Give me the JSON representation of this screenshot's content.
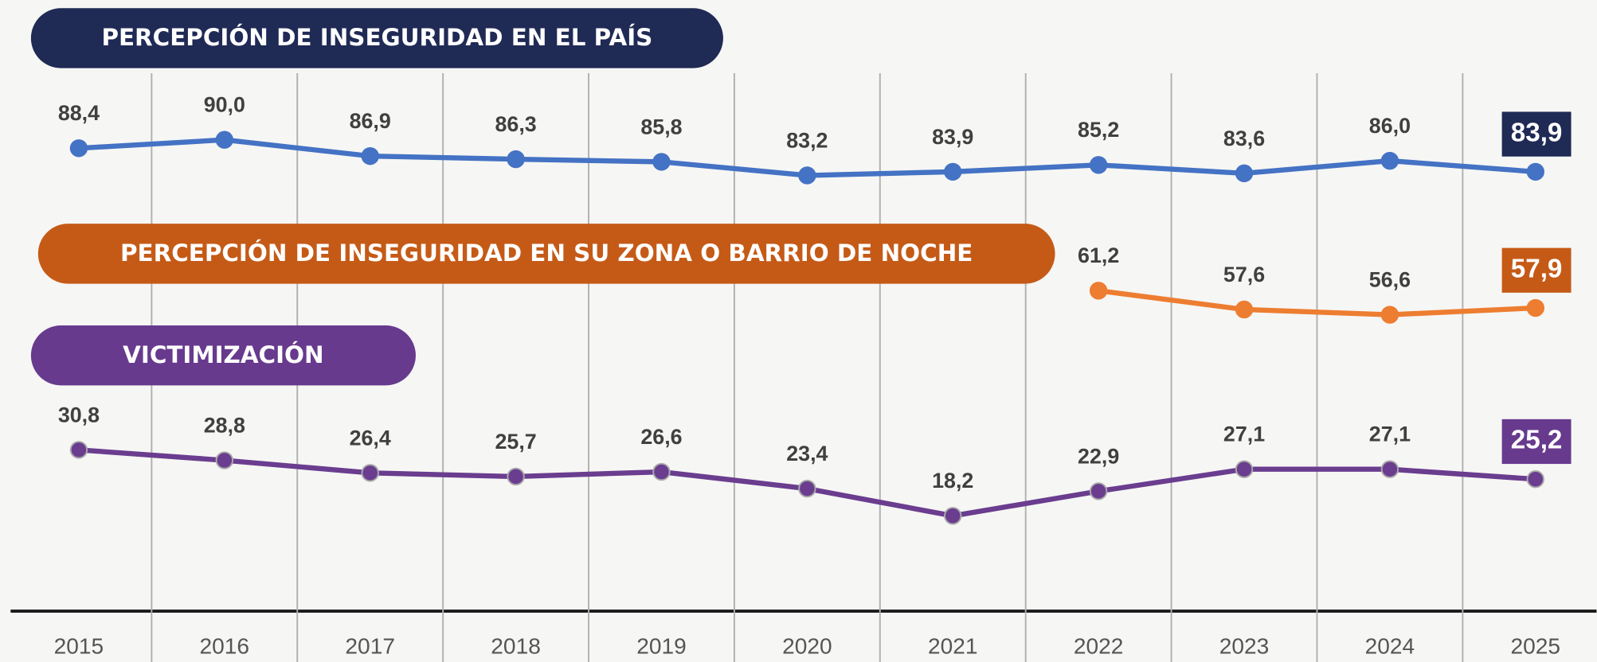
{
  "chart_data": {
    "type": "line",
    "categories": [
      "2015",
      "2016",
      "2017",
      "2018",
      "2019",
      "2020",
      "2021",
      "2022",
      "2023",
      "2024",
      "2025"
    ],
    "ylim": [
      0,
      100
    ],
    "series": [
      {
        "name": "PERCEPCIÓN DE INSEGURIDAD EN EL PAÍS",
        "color": "#4472c4",
        "banner_color": "#1f2a55",
        "values": [
          88.4,
          90.0,
          86.9,
          86.3,
          85.8,
          83.2,
          83.9,
          85.2,
          83.6,
          86.0,
          83.9
        ],
        "value_labels": [
          "88,4",
          "90,0",
          "86,9",
          "86,3",
          "85,8",
          "83,2",
          "83,9",
          "85,2",
          "83,6",
          "86,0",
          "83,9"
        ]
      },
      {
        "name": "PERCEPCIÓN DE INSEGURIDAD EN SU ZONA O BARRIO DE NOCHE",
        "color": "#ed7d31",
        "banner_color": "#c55a17",
        "values": [
          null,
          null,
          null,
          null,
          null,
          null,
          null,
          61.2,
          57.6,
          56.6,
          57.9
        ],
        "value_labels": [
          null,
          null,
          null,
          null,
          null,
          null,
          null,
          "61,2",
          "57,6",
          "56,6",
          "57,9"
        ]
      },
      {
        "name": "VICTIMIZACIÓN",
        "color": "#6a3d8f",
        "banner_color": "#673a8e",
        "values": [
          30.8,
          28.8,
          26.4,
          25.7,
          26.6,
          23.4,
          18.2,
          22.9,
          27.1,
          27.1,
          25.2
        ],
        "value_labels": [
          "30,8",
          "28,8",
          "26,4",
          "25,7",
          "26,6",
          "23,4",
          "18,2",
          "22,9",
          "27,1",
          "27,1",
          "25,2"
        ]
      }
    ]
  }
}
